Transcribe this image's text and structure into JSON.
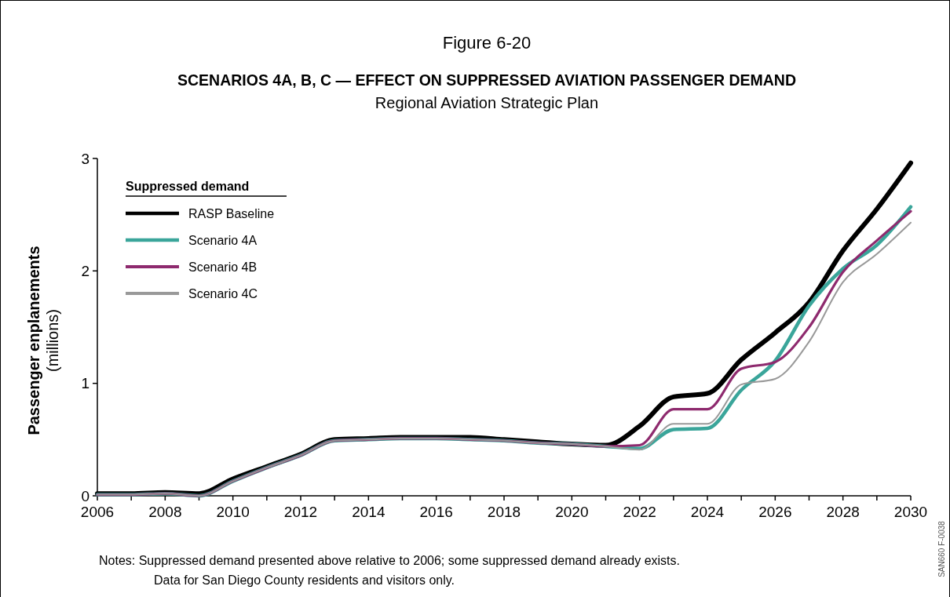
{
  "chart_data": {
    "type": "line",
    "title": "SCENARIOS 4A, B, C — EFFECT ON SUPPRESSED AVIATION PASSENGER DEMAND",
    "subtitle": "Regional Aviation Strategic Plan",
    "ylabel": "Passenger enplanements (millions)",
    "legend_title": "Suppressed demand",
    "legend": "top left",
    "annotations": [
      "Figure 6-20",
      "Notes:  Suppressed demand presented above relative to 2006; some suppressed demand already exists.",
      "Data for San Diego County residents and visitors only.",
      "SAN660 F-0038"
    ],
    "x": [
      2006,
      2007,
      2008,
      2009,
      2010,
      2011,
      2012,
      2013,
      2014,
      2015,
      2016,
      2017,
      2018,
      2019,
      2020,
      2021,
      2022,
      2023,
      2024,
      2025,
      2026,
      2027,
      2028,
      2029,
      2030
    ],
    "xlim": [
      2006,
      2030
    ],
    "xticks": [
      2006,
      {
        "value": 2007,
        "label": null
      },
      2008,
      {
        "value": 2009,
        "label": null
      },
      2010,
      {
        "value": 2011,
        "label": null
      },
      2012,
      {
        "value": 2013,
        "label": null
      },
      2014,
      {
        "value": 2015,
        "label": null
      },
      2016,
      {
        "value": 2017,
        "label": null
      },
      2018,
      {
        "value": 2019,
        "label": null
      },
      2020,
      {
        "value": 2021,
        "label": null
      },
      2022,
      {
        "value": 2023,
        "label": null
      },
      2024,
      {
        "value": 2025,
        "label": null
      },
      2026,
      {
        "value": 2027,
        "label": null
      },
      2028,
      {
        "value": 2029,
        "label": null
      },
      2030
    ],
    "ylim": [
      0,
      3
    ],
    "yticks": [
      0,
      1,
      2,
      3
    ],
    "grid": false,
    "marker": "none",
    "line_style": "solid",
    "series": [
      {
        "name": "RASP Baseline",
        "color": "#000000",
        "values": [
          0.02,
          0.02,
          0.03,
          0.02,
          0.15,
          0.26,
          0.37,
          0.5,
          0.51,
          0.52,
          0.52,
          0.52,
          0.5,
          0.48,
          0.46,
          0.45,
          0.62,
          0.88,
          0.91,
          1.21,
          1.45,
          1.72,
          2.18,
          2.55,
          2.96
        ]
      },
      {
        "name": "Scenario 4A",
        "color": "#3aa59a",
        "values": [
          0.01,
          0.01,
          0.02,
          0.0,
          0.13,
          0.25,
          0.36,
          0.49,
          0.5,
          0.51,
          0.51,
          0.5,
          0.49,
          0.47,
          0.46,
          0.44,
          0.42,
          0.59,
          0.6,
          0.94,
          1.2,
          1.69,
          2.02,
          2.23,
          2.57
        ]
      },
      {
        "name": "Scenario 4B",
        "color": "#8e2a6e",
        "values": [
          0.01,
          0.01,
          0.02,
          0.0,
          0.13,
          0.25,
          0.36,
          0.49,
          0.5,
          0.51,
          0.51,
          0.5,
          0.49,
          0.47,
          0.46,
          0.44,
          0.45,
          0.77,
          0.77,
          1.13,
          1.19,
          1.5,
          1.99,
          2.27,
          2.53
        ]
      },
      {
        "name": "Scenario 4C",
        "color": "#999999",
        "values": [
          0.01,
          0.01,
          0.02,
          0.0,
          0.13,
          0.25,
          0.36,
          0.49,
          0.5,
          0.51,
          0.51,
          0.5,
          0.49,
          0.47,
          0.46,
          0.44,
          0.41,
          0.64,
          0.64,
          0.99,
          1.04,
          1.37,
          1.9,
          2.15,
          2.43
        ]
      }
    ]
  }
}
